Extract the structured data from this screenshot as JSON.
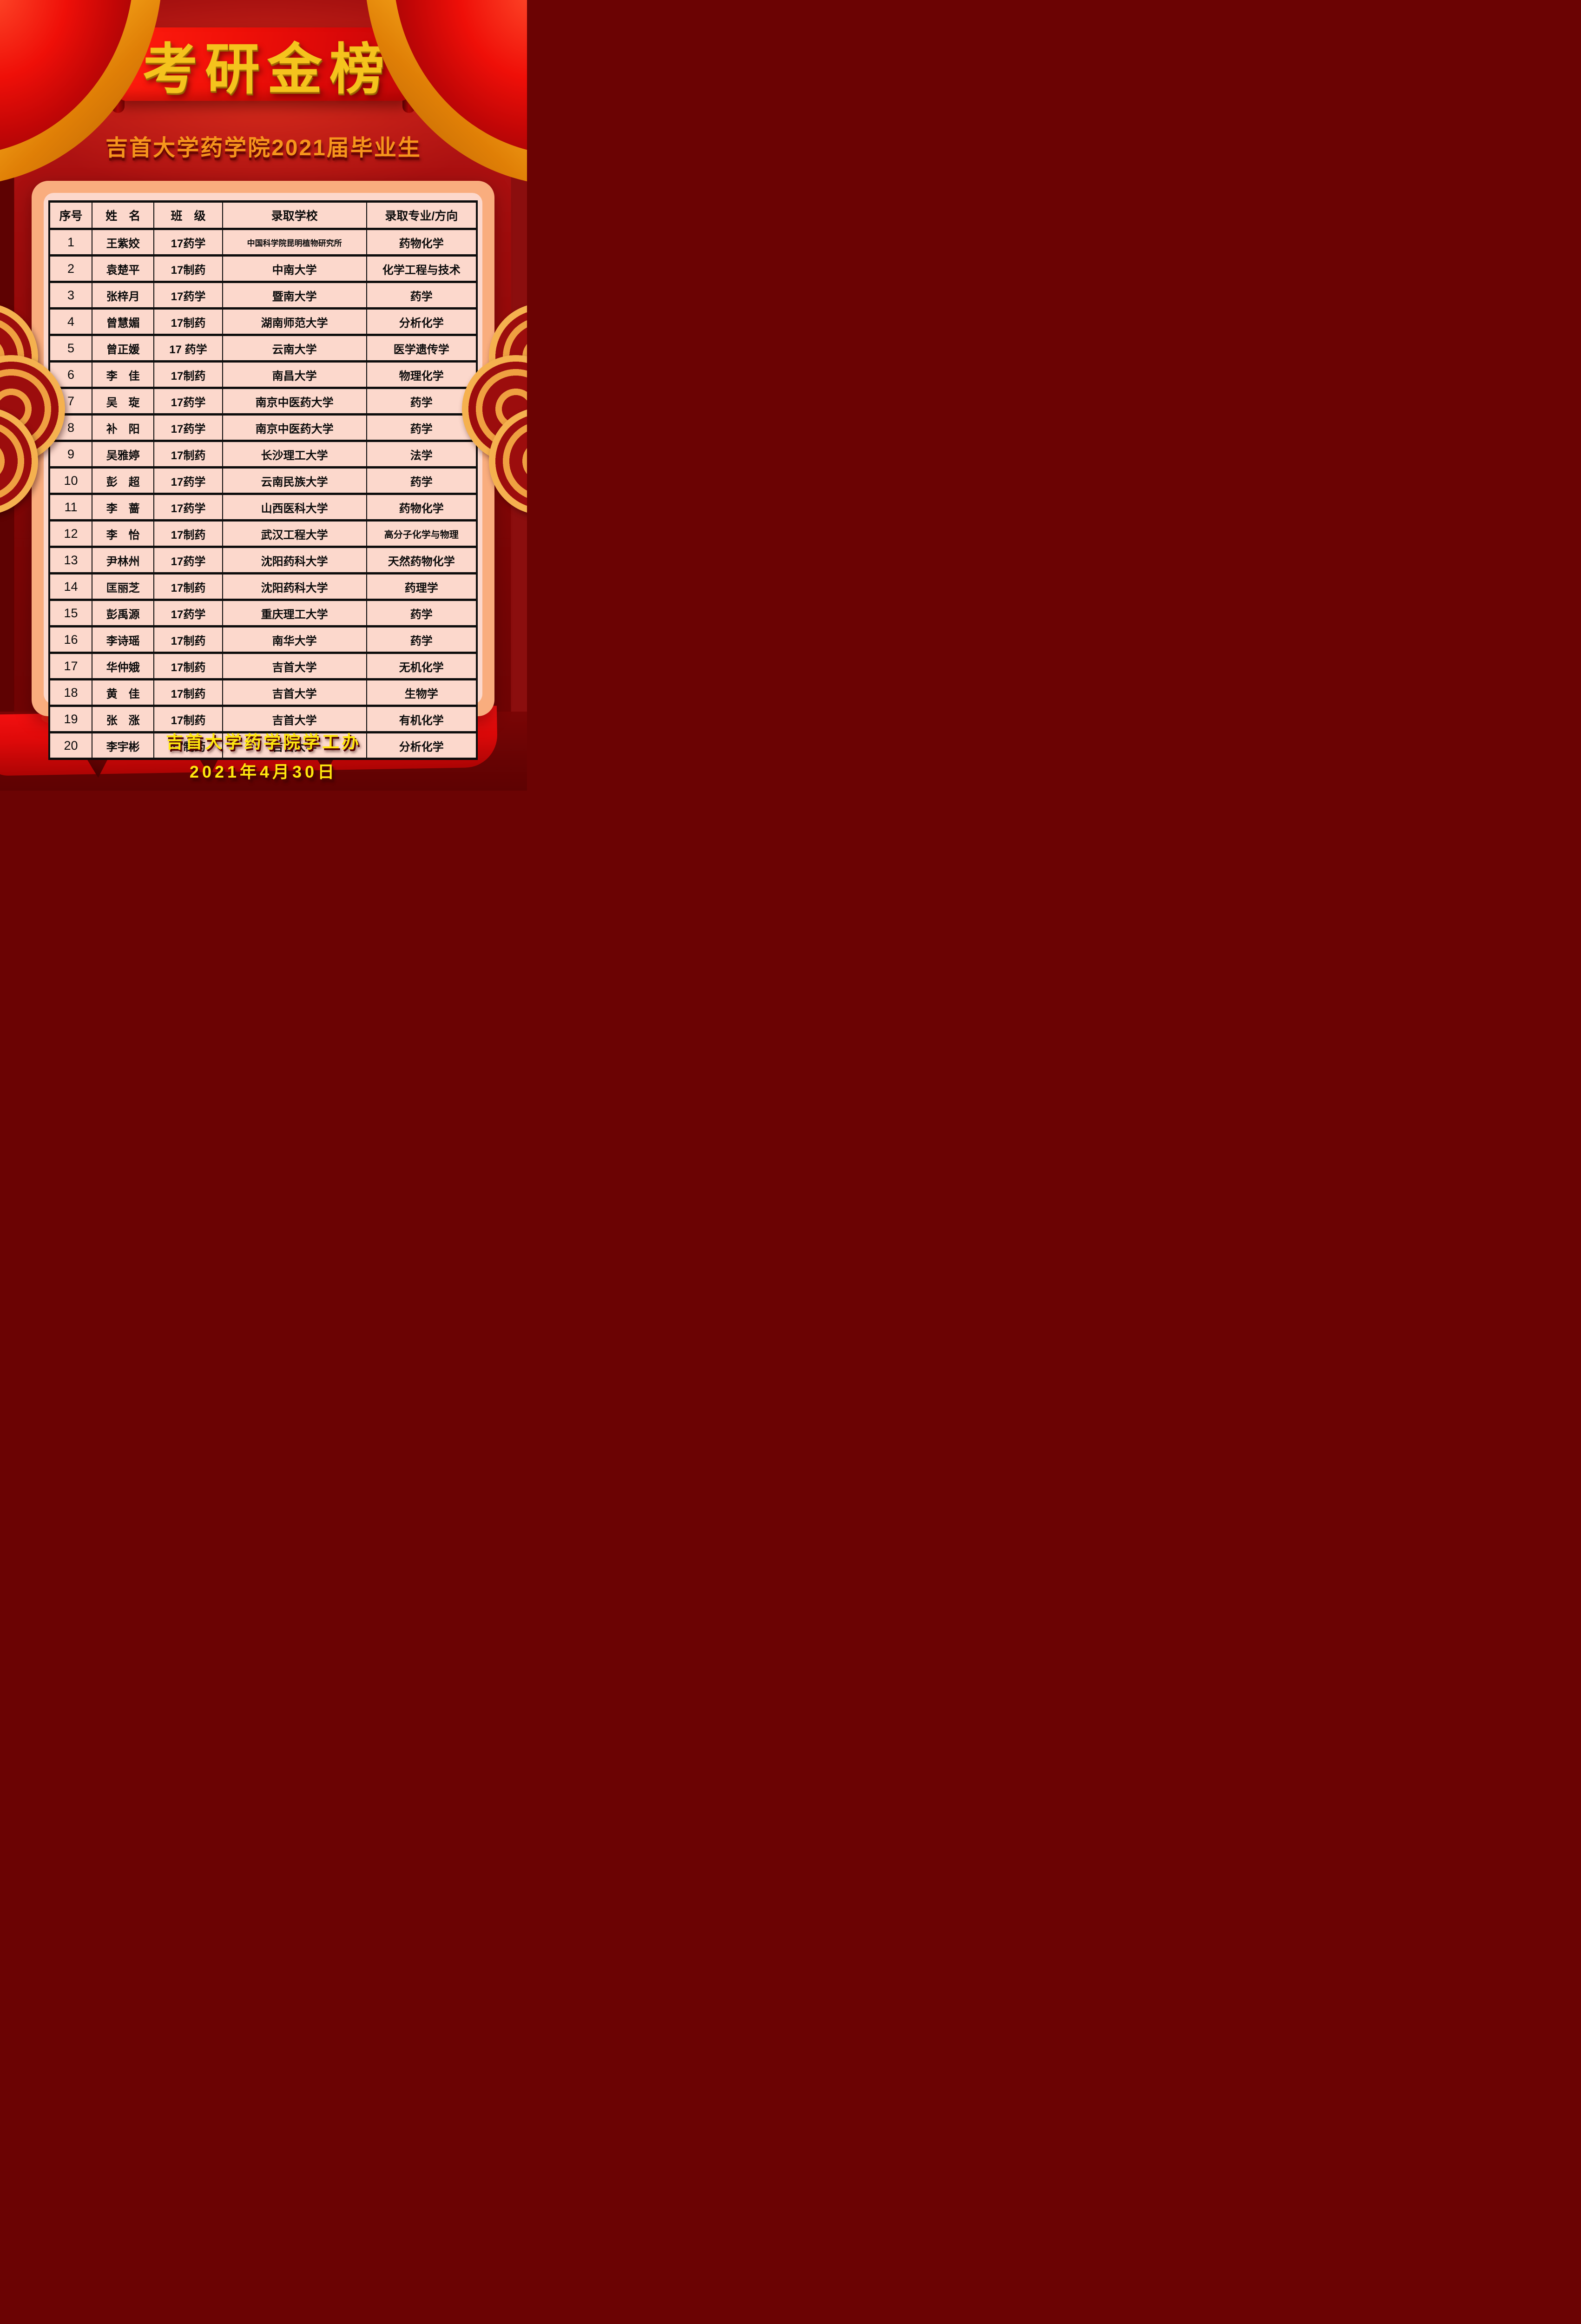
{
  "poster": {
    "banner_title": "考研金榜",
    "subtitle": "吉首大学药学院2021届毕业生",
    "footer": {
      "line1": "吉首大学药学院学工办",
      "line2": "2021年4月30日"
    }
  },
  "table": {
    "headers": [
      "序号",
      "姓　名",
      "班　级",
      "录取学校",
      "录取专业/方向"
    ],
    "rows": [
      {
        "no": "1",
        "name": "王紫姣",
        "class_name": "17药学",
        "school": "中国科学院昆明植物研究所",
        "major": "药物化学"
      },
      {
        "no": "2",
        "name": "袁楚平",
        "class_name": "17制药",
        "school": "中南大学",
        "major": "化学工程与技术"
      },
      {
        "no": "3",
        "name": "张梓月",
        "class_name": "17药学",
        "school": "暨南大学",
        "major": "药学"
      },
      {
        "no": "4",
        "name": "曾慧媚",
        "class_name": "17制药",
        "school": "湖南师范大学",
        "major": "分析化学"
      },
      {
        "no": "5",
        "name": "曾正媛",
        "class_name": "17 药学",
        "school": "云南大学",
        "major": "医学遗传学"
      },
      {
        "no": "6",
        "name": "李　佳",
        "class_name": "17制药",
        "school": "南昌大学",
        "major": "物理化学"
      },
      {
        "no": "7",
        "name": "吴　琁",
        "class_name": "17药学",
        "school": "南京中医药大学",
        "major": "药学"
      },
      {
        "no": "8",
        "name": "补　阳",
        "class_name": "17药学",
        "school": "南京中医药大学",
        "major": "药学"
      },
      {
        "no": "9",
        "name": "吴雅婷",
        "class_name": "17制药",
        "school": "长沙理工大学",
        "major": "法学"
      },
      {
        "no": "10",
        "name": "彭　超",
        "class_name": "17药学",
        "school": "云南民族大学",
        "major": "药学"
      },
      {
        "no": "11",
        "name": "李　蔷",
        "class_name": "17药学",
        "school": "山西医科大学",
        "major": "药物化学"
      },
      {
        "no": "12",
        "name": "李　怡",
        "class_name": "17制药",
        "school": "武汉工程大学",
        "major": "高分子化学与物理"
      },
      {
        "no": "13",
        "name": "尹林州",
        "class_name": "17药学",
        "school": "沈阳药科大学",
        "major": "天然药物化学"
      },
      {
        "no": "14",
        "name": "匡丽芝",
        "class_name": "17制药",
        "school": "沈阳药科大学",
        "major": "药理学"
      },
      {
        "no": "15",
        "name": "彭禹源",
        "class_name": "17药学",
        "school": "重庆理工大学",
        "major": "药学"
      },
      {
        "no": "16",
        "name": "李诗瑶",
        "class_name": "17制药",
        "school": "南华大学",
        "major": "药学"
      },
      {
        "no": "17",
        "name": "华仲娥",
        "class_name": "17制药",
        "school": "吉首大学",
        "major": "无机化学"
      },
      {
        "no": "18",
        "name": "黄　佳",
        "class_name": "17制药",
        "school": "吉首大学",
        "major": "生物学"
      },
      {
        "no": "19",
        "name": "张　涨",
        "class_name": "17制药",
        "school": "吉首大学",
        "major": "有机化学"
      },
      {
        "no": "20",
        "name": "李宇彬",
        "class_name": "17制药",
        "school": "吉首大学",
        "major": "分析化学"
      }
    ]
  },
  "colors": {
    "background_red": "#9a0b0b",
    "background_maroon": "#6b0303",
    "banner_red": "#ee0d08",
    "title_gold": "#f5c31d",
    "subtitle_orange": "#f6951c",
    "card_border_peach": "#f9ad7e",
    "card_bg_pink": "#fcd8cc",
    "table_line_black": "#0d0d0d",
    "footer_yellow": "#ffe70d",
    "ornament_gold": "#efa041"
  }
}
